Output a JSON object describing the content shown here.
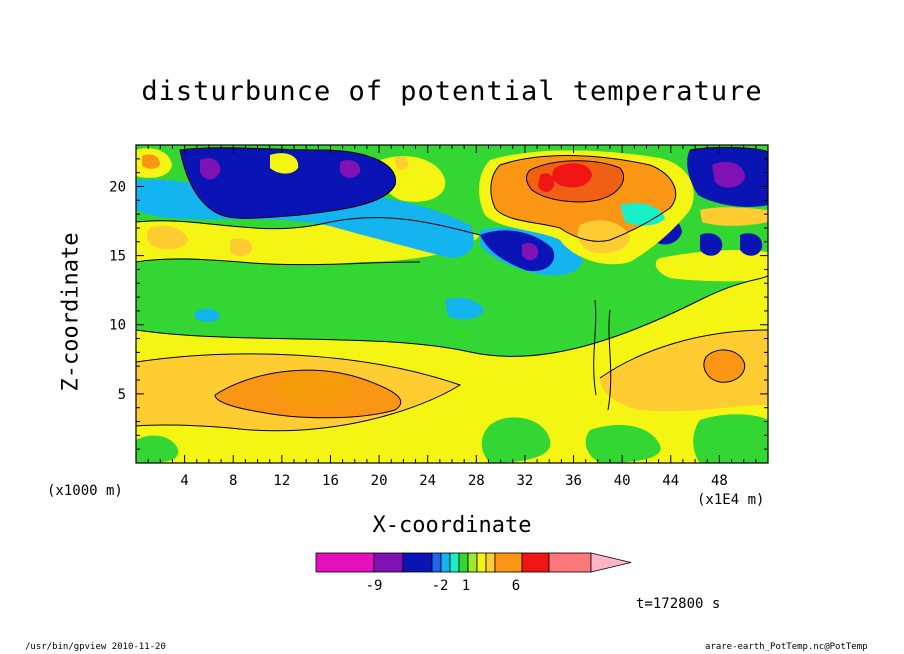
{
  "chart_data": {
    "type": "heatmap",
    "title": "disturbunce of potential temperature",
    "xlabel": "X-coordinate",
    "ylabel": "Z-coordinate",
    "x_units_left": "(x1000 m)",
    "x_units_right": "(x1E4 m)",
    "xlim": [
      0,
      52
    ],
    "ylim": [
      0,
      23
    ],
    "x_ticks": [
      "4",
      "8",
      "12",
      "16",
      "20",
      "24",
      "28",
      "32",
      "36",
      "40",
      "44",
      "48"
    ],
    "y_ticks": [
      "5",
      "10",
      "15",
      "20"
    ],
    "grid": false,
    "colorbar": {
      "colors": [
        "#e60fbe",
        "#8011b4",
        "#0a14b4",
        "#1e64f0",
        "#14b4f0",
        "#19f0c8",
        "#33d633",
        "#a0e633",
        "#f5f514",
        "#ffcd32",
        "#fa9614",
        "#f01414",
        "#fa7878",
        "#ffb4c8"
      ],
      "labels": [
        "-9",
        "-2",
        "1",
        "6"
      ]
    },
    "time_label": "t=172800 s",
    "footer_left": "/usr/bin/gpview  2010-11-20",
    "footer_right": "arare-earth_PotTemp.nc@PotTemp"
  }
}
